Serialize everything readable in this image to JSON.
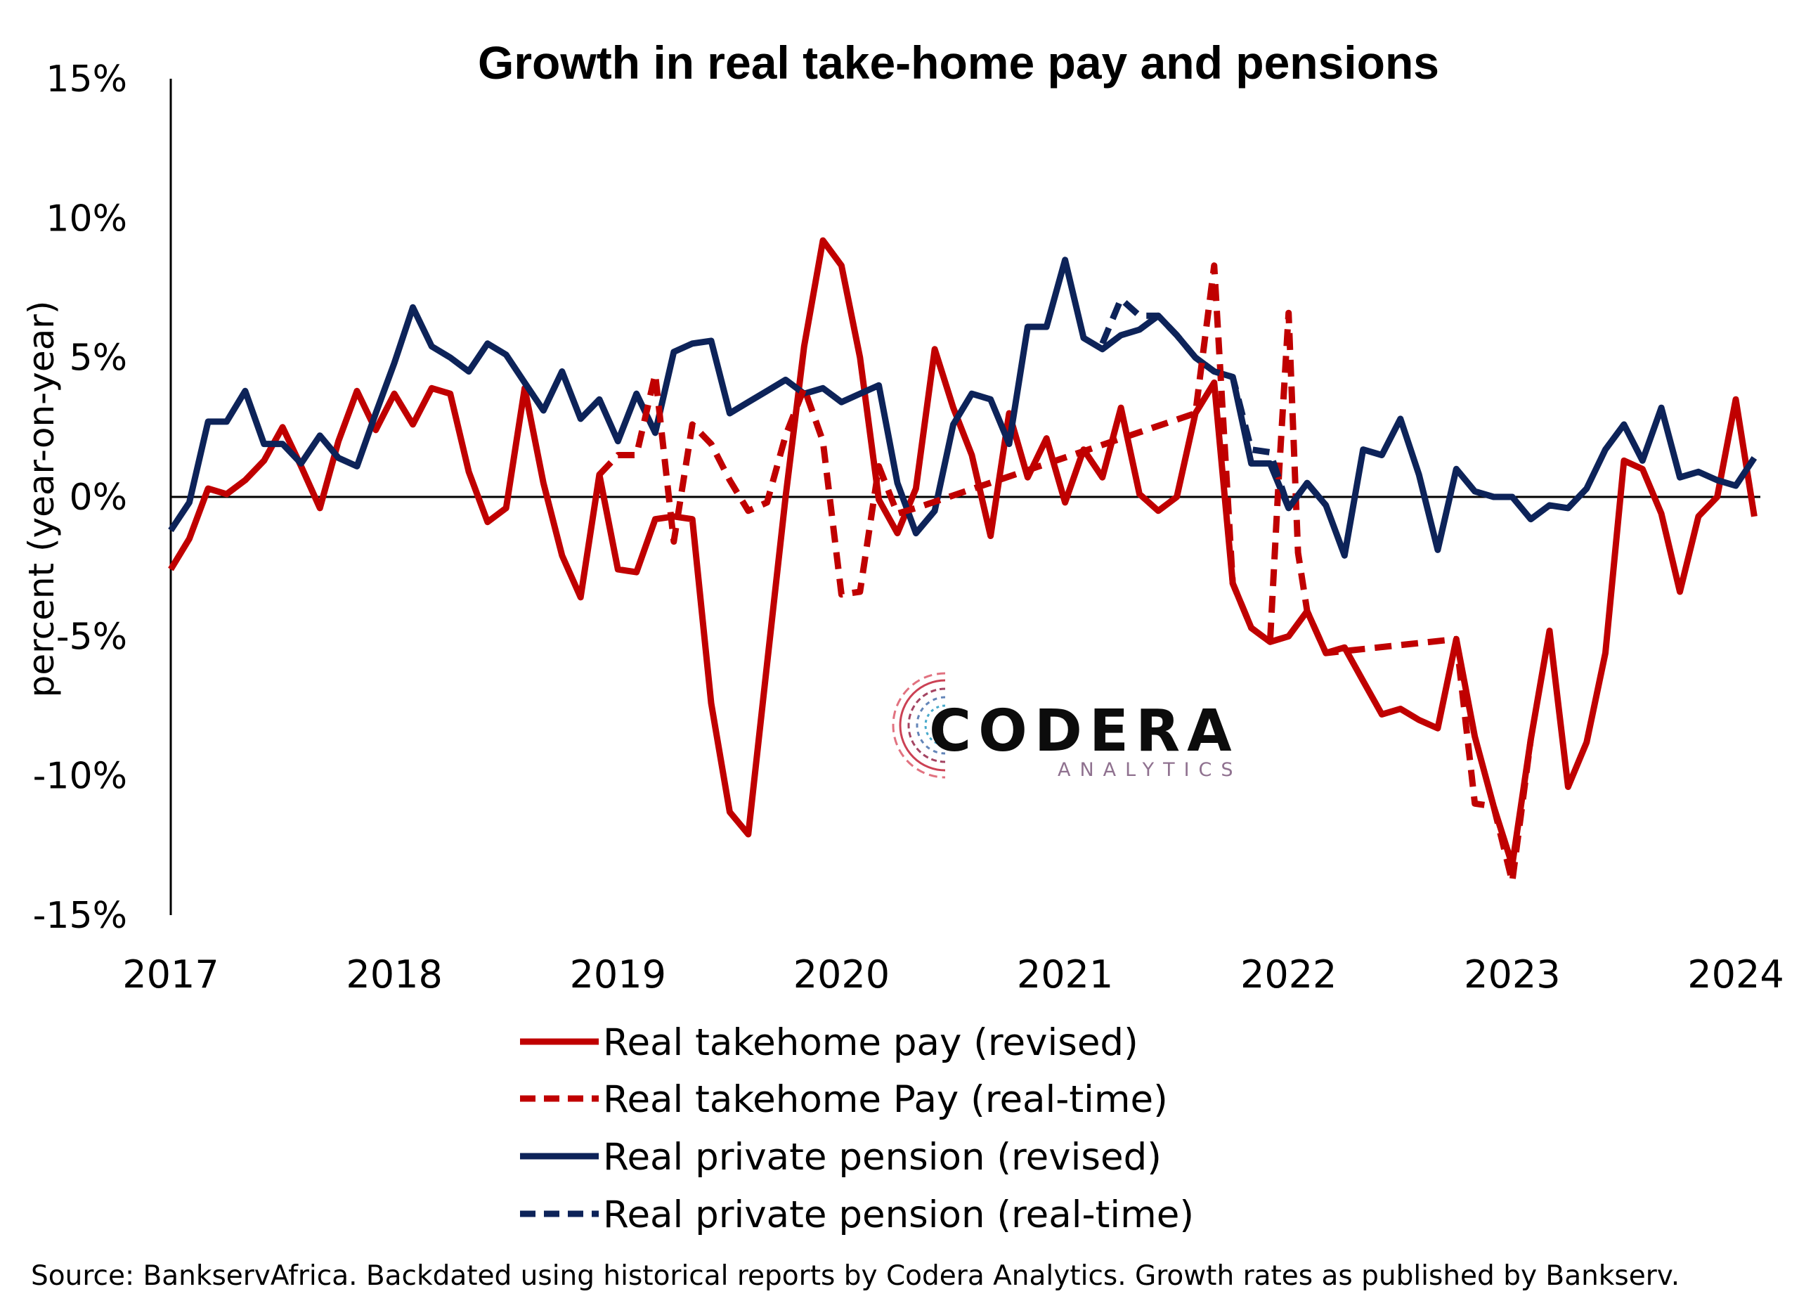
{
  "chart_data": {
    "type": "line",
    "title": "Growth in real take-home pay and pensions",
    "ylabel": "percent (year-on-year)",
    "xlabel": "",
    "ylim": [
      -15,
      15
    ],
    "xlim": [
      2017,
      2024.1
    ],
    "yticks": [
      15,
      10,
      5,
      0,
      -5,
      -10,
      -15
    ],
    "ytick_labels": [
      "15%",
      "10%",
      "5%",
      "0%",
      "-5%",
      "-10%",
      "-15%"
    ],
    "xticks": [
      2017,
      2018,
      2019,
      2020,
      2021,
      2022,
      2023,
      2024
    ],
    "xtick_labels": [
      "2017",
      "2018",
      "2019",
      "2020",
      "2021",
      "2022",
      "2023",
      "2024"
    ],
    "grid": false,
    "legend_position": "bottom",
    "source": "Source: BankservAfrica. Backdated using historical reports by Codera Analytics. Growth rates as published by Bankserv.",
    "watermark": {
      "main": "CODERA",
      "sub": "ANALYTICS"
    },
    "series": [
      {
        "name": "Real takehome pay (revised)",
        "color": "#c00000",
        "dash": "solid",
        "x": [
          2017.0,
          2017.083,
          2017.167,
          2017.25,
          2017.333,
          2017.417,
          2017.5,
          2017.583,
          2017.667,
          2017.75,
          2017.833,
          2017.917,
          2018.0,
          2018.083,
          2018.167,
          2018.25,
          2018.333,
          2018.417,
          2018.5,
          2018.583,
          2018.667,
          2018.75,
          2018.833,
          2018.917,
          2019.0,
          2019.083,
          2019.167,
          2019.25,
          2019.333,
          2019.417,
          2019.5,
          2019.583,
          2019.667,
          2019.75,
          2019.833,
          2019.917,
          2020.0,
          2020.083,
          2020.167,
          2020.25,
          2020.333,
          2020.417,
          2020.5,
          2020.583,
          2020.667,
          2020.75,
          2020.833,
          2020.917,
          2021.0,
          2021.083,
          2021.167,
          2021.25,
          2021.333,
          2021.417,
          2021.5,
          2021.583,
          2021.667,
          2021.75,
          2021.833,
          2021.917,
          2022.0,
          2022.083,
          2022.167,
          2022.25,
          2022.333,
          2022.417,
          2022.5,
          2022.583,
          2022.667,
          2022.75,
          2022.833,
          2022.917,
          2023.0,
          2023.083,
          2023.167,
          2023.25,
          2023.333,
          2023.417,
          2023.5,
          2023.583,
          2023.667,
          2023.75,
          2023.833,
          2023.917,
          2024.0,
          2024.083
        ],
        "values": [
          -2.6,
          -1.5,
          0.3,
          0.1,
          0.6,
          1.3,
          2.5,
          1.1,
          -0.4,
          2.0,
          3.8,
          2.4,
          3.7,
          2.6,
          3.9,
          3.7,
          0.9,
          -0.9,
          -0.4,
          3.9,
          0.5,
          -2.1,
          -3.6,
          0.8,
          -2.6,
          -2.7,
          -0.8,
          -0.7,
          -0.8,
          -7.4,
          -11.3,
          -12.1,
          -6.0,
          0.0,
          5.4,
          9.2,
          8.3,
          5.0,
          -0.1,
          -1.3,
          0.3,
          5.3,
          3.2,
          1.5,
          -1.4,
          3.0,
          0.7,
          2.1,
          -0.2,
          1.7,
          0.7,
          3.2,
          0.1,
          -0.5,
          0.0,
          3.0,
          4.1,
          -3.1,
          -4.7,
          -5.2,
          -5.0,
          -4.1,
          -5.6,
          -5.4,
          -6.6,
          -7.8,
          -7.6,
          -8.0,
          -8.3,
          -5.1,
          -8.6,
          -11.1,
          -13.2,
          -8.7,
          -4.8,
          -10.4,
          -8.8,
          -5.6,
          1.3,
          1.0,
          -0.6,
          -3.4,
          -0.7,
          0.0,
          3.5,
          -0.7
        ]
      },
      {
        "name": "Real takehome Pay (real-time)",
        "color": "#c00000",
        "dash": "dashed",
        "x": [
          2018.917,
          2019.0,
          2019.083,
          2019.167,
          2019.25,
          2019.333,
          2019.417,
          2019.5,
          2019.583,
          2019.667,
          2019.75,
          2019.833,
          2019.917,
          2020.0,
          2020.083,
          2020.167,
          2020.25,
          2020.333,
          2021.583,
          2021.667,
          2021.75,
          2021.833,
          2021.917,
          2021.958,
          2022.0,
          2022.042,
          2022.083,
          2022.167,
          2022.75,
          2022.833,
          2022.917,
          2023.0,
          2023.083
        ],
        "values": [
          0.8,
          1.5,
          1.5,
          4.4,
          -1.6,
          2.6,
          1.9,
          0.6,
          -0.5,
          -0.2,
          2.2,
          3.9,
          2.0,
          -3.5,
          -3.4,
          1.1,
          -0.6,
          -0.4,
          3.0,
          8.3,
          -3.1,
          -4.7,
          -5.2,
          1.0,
          6.6,
          -2.0,
          -4.1,
          -5.6,
          -5.1,
          -11.0,
          -11.1,
          -13.8,
          -8.7
        ]
      },
      {
        "name": "Real private pension (revised)",
        "color": "#0d2359",
        "dash": "solid",
        "x": [
          2017.0,
          2017.083,
          2017.167,
          2017.25,
          2017.333,
          2017.417,
          2017.5,
          2017.583,
          2017.667,
          2017.75,
          2017.833,
          2017.917,
          2018.0,
          2018.083,
          2018.167,
          2018.25,
          2018.333,
          2018.417,
          2018.5,
          2018.583,
          2018.667,
          2018.75,
          2018.833,
          2018.917,
          2019.0,
          2019.083,
          2019.167,
          2019.25,
          2019.333,
          2019.417,
          2019.5,
          2019.583,
          2019.667,
          2019.75,
          2019.833,
          2019.917,
          2020.0,
          2020.083,
          2020.167,
          2020.25,
          2020.333,
          2020.417,
          2020.5,
          2020.583,
          2020.667,
          2020.75,
          2020.833,
          2020.917,
          2021.0,
          2021.083,
          2021.167,
          2021.25,
          2021.333,
          2021.417,
          2021.5,
          2021.583,
          2021.667,
          2021.75,
          2021.833,
          2021.917,
          2022.0,
          2022.083,
          2022.167,
          2022.25,
          2022.333,
          2022.417,
          2022.5,
          2022.583,
          2022.667,
          2022.75,
          2022.833,
          2022.917,
          2023.0,
          2023.083,
          2023.167,
          2023.25,
          2023.333,
          2023.417,
          2023.5,
          2023.583,
          2023.667,
          2023.75,
          2023.833,
          2023.917,
          2024.0,
          2024.083
        ],
        "values": [
          -1.2,
          -0.2,
          2.7,
          2.7,
          3.8,
          1.9,
          1.9,
          1.2,
          2.2,
          1.4,
          1.1,
          3.0,
          4.8,
          6.8,
          5.4,
          5.0,
          4.5,
          5.5,
          5.1,
          4.1,
          3.1,
          4.5,
          2.8,
          3.5,
          2.0,
          3.7,
          2.3,
          5.2,
          5.5,
          5.6,
          3.0,
          3.4,
          3.8,
          4.2,
          3.7,
          3.9,
          3.4,
          3.7,
          4.0,
          0.5,
          -1.3,
          -0.5,
          2.6,
          3.7,
          3.5,
          1.9,
          6.1,
          6.1,
          8.5,
          5.7,
          5.3,
          5.8,
          6.0,
          6.5,
          5.8,
          5.0,
          4.5,
          4.3,
          1.2,
          1.2,
          -0.4,
          0.5,
          -0.3,
          -2.1,
          1.7,
          1.5,
          2.8,
          0.8,
          -1.9,
          1.0,
          0.2,
          0.0,
          0.0,
          -0.8,
          -0.3,
          -0.4,
          0.3,
          1.7,
          2.6,
          1.3,
          3.2,
          0.7,
          0.9,
          0.6,
          0.4,
          1.4
        ]
      },
      {
        "name": "Real private pension (real-time)",
        "color": "#0d2359",
        "dash": "dashed",
        "x": [
          2021.167,
          2021.25,
          2021.333,
          2021.417,
          2021.5,
          2021.583,
          2021.667,
          2021.75,
          2021.833,
          2021.917,
          2022.0,
          2022.083,
          2022.167
        ],
        "values": [
          5.5,
          7.1,
          6.5,
          6.5,
          5.8,
          5.0,
          4.5,
          4.3,
          1.7,
          1.6,
          -0.4,
          0.5,
          -0.3
        ]
      }
    ]
  }
}
